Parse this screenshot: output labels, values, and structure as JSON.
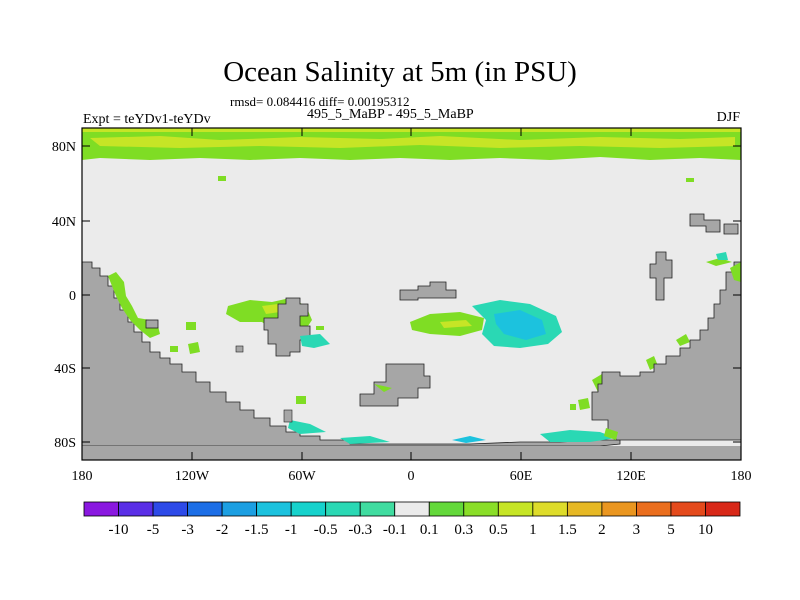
{
  "header": {
    "title": "Ocean Salinity at 5m (in PSU)",
    "stats": "rmsd= 0.084416 diff= 0.00195312",
    "diff_label": "495_5_MaBP - 495_5_MaBP",
    "expt_label": "Expt = teYDv1-teYDv",
    "season": "DJF"
  },
  "map": {
    "lat_ticks": [
      "80N",
      "40N",
      "0",
      "40S",
      "80S"
    ],
    "lon_ticks": [
      "180",
      "120W",
      "60W",
      "0",
      "60E",
      "120E",
      "180"
    ],
    "colors": {
      "land": "#a6a6a6",
      "ocean_neutral": "#ebebeb",
      "green": "#7fdd24",
      "lime": "#c6e526",
      "teal": "#2ad8b4",
      "cyan": "#1cc2de"
    }
  },
  "colorbar": {
    "labels": [
      "-10",
      "-5",
      "-3",
      "-2",
      "-1.5",
      "-1",
      "-0.5",
      "-0.3",
      "-0.1",
      "0.1",
      "0.3",
      "0.5",
      "1",
      "1.5",
      "2",
      "3",
      "5",
      "10"
    ],
    "colors": [
      "#8a18e0",
      "#5a2ee6",
      "#2d4ae8",
      "#1c6ee6",
      "#1c9fe2",
      "#1cc2de",
      "#16d2cc",
      "#2ad8b4",
      "#40dca0",
      "#ebebeb",
      "#63d83a",
      "#8ade28",
      "#c6e526",
      "#dedc2a",
      "#e6b824",
      "#ea9620",
      "#ea6e1e",
      "#e44a1c",
      "#d82818"
    ]
  }
}
